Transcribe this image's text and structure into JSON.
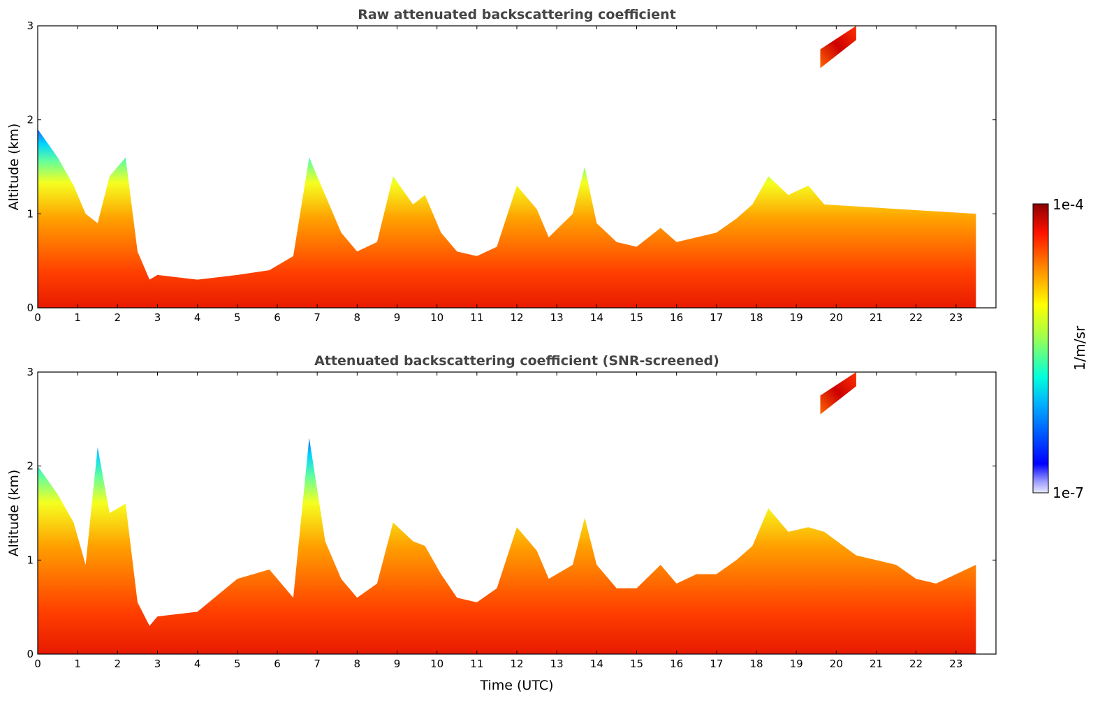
{
  "chart_data": [
    {
      "type": "heatmap",
      "title": "Raw attenuated backscattering coefficient",
      "xlabel": "",
      "ylabel": "Altitude (km)",
      "xlim": [
        0,
        24
      ],
      "ylim": [
        0,
        3
      ],
      "xticks": [
        "0",
        "1",
        "2",
        "3",
        "4",
        "5",
        "6",
        "7",
        "8",
        "9",
        "10",
        "11",
        "12",
        "13",
        "14",
        "15",
        "16",
        "17",
        "18",
        "19",
        "20",
        "21",
        "22",
        "23"
      ],
      "yticks": [
        "0",
        "1",
        "2",
        "3"
      ],
      "data_end_hour": 23.5,
      "screened": false,
      "boundary_layer_top_km": [
        [
          0.0,
          1.9
        ],
        [
          0.5,
          1.6
        ],
        [
          0.9,
          1.3
        ],
        [
          1.2,
          1.0
        ],
        [
          1.5,
          0.9
        ],
        [
          1.8,
          1.4
        ],
        [
          2.2,
          1.6
        ],
        [
          2.5,
          0.6
        ],
        [
          2.8,
          0.3
        ],
        [
          3.0,
          0.35
        ],
        [
          4.0,
          0.3
        ],
        [
          5.0,
          0.35
        ],
        [
          5.8,
          0.4
        ],
        [
          6.4,
          0.55
        ],
        [
          6.8,
          1.6
        ],
        [
          7.2,
          1.2
        ],
        [
          7.6,
          0.8
        ],
        [
          8.0,
          0.6
        ],
        [
          8.5,
          0.7
        ],
        [
          8.9,
          1.4
        ],
        [
          9.4,
          1.1
        ],
        [
          9.7,
          1.2
        ],
        [
          10.1,
          0.8
        ],
        [
          10.5,
          0.6
        ],
        [
          11.0,
          0.55
        ],
        [
          11.5,
          0.65
        ],
        [
          12.0,
          1.3
        ],
        [
          12.5,
          1.05
        ],
        [
          12.8,
          0.75
        ],
        [
          13.4,
          1.0
        ],
        [
          13.7,
          1.5
        ],
        [
          14.0,
          0.9
        ],
        [
          14.5,
          0.7
        ],
        [
          15.0,
          0.65
        ],
        [
          15.6,
          0.85
        ],
        [
          16.0,
          0.7
        ],
        [
          16.5,
          0.75
        ],
        [
          17.0,
          0.8
        ],
        [
          17.5,
          0.95
        ],
        [
          17.9,
          1.1
        ],
        [
          18.3,
          1.4
        ],
        [
          18.8,
          1.2
        ],
        [
          19.3,
          1.3
        ],
        [
          19.7,
          1.1
        ],
        [
          23.5,
          1.0
        ]
      ],
      "elevated_layer": {
        "start_hour": 19.6,
        "end_hour": 20.5,
        "base_km": [
          2.55,
          2.85
        ],
        "top_km": [
          2.75,
          3.0
        ]
      },
      "colorbar": {
        "label": "1/m/sr",
        "min_label": "1e-7",
        "max_label": "1e-4",
        "colormap": "jet"
      }
    },
    {
      "type": "heatmap",
      "title": "Attenuated backscattering coefficient (SNR-screened)",
      "xlabel": "Time (UTC)",
      "ylabel": "Altitude (km)",
      "xlim": [
        0,
        24
      ],
      "ylim": [
        0,
        3
      ],
      "xticks": [
        "0",
        "1",
        "2",
        "3",
        "4",
        "5",
        "6",
        "7",
        "8",
        "9",
        "10",
        "11",
        "12",
        "13",
        "14",
        "15",
        "16",
        "17",
        "18",
        "19",
        "20",
        "21",
        "22",
        "23"
      ],
      "yticks": [
        "0",
        "1",
        "2",
        "3"
      ],
      "data_end_hour": 23.5,
      "screened": true,
      "boundary_layer_top_km": [
        [
          0.0,
          2.0
        ],
        [
          0.5,
          1.7
        ],
        [
          0.9,
          1.4
        ],
        [
          1.2,
          0.95
        ],
        [
          1.5,
          2.2
        ],
        [
          1.8,
          1.5
        ],
        [
          2.2,
          1.6
        ],
        [
          2.5,
          0.55
        ],
        [
          2.8,
          0.3
        ],
        [
          3.0,
          0.4
        ],
        [
          4.0,
          0.45
        ],
        [
          5.0,
          0.8
        ],
        [
          5.8,
          0.9
        ],
        [
          6.4,
          0.6
        ],
        [
          6.8,
          2.3
        ],
        [
          7.2,
          1.2
        ],
        [
          7.6,
          0.8
        ],
        [
          8.0,
          0.6
        ],
        [
          8.5,
          0.75
        ],
        [
          8.9,
          1.4
        ],
        [
          9.4,
          1.2
        ],
        [
          9.7,
          1.15
        ],
        [
          10.1,
          0.85
        ],
        [
          10.5,
          0.6
        ],
        [
          11.0,
          0.55
        ],
        [
          11.5,
          0.7
        ],
        [
          12.0,
          1.35
        ],
        [
          12.5,
          1.1
        ],
        [
          12.8,
          0.8
        ],
        [
          13.4,
          0.95
        ],
        [
          13.7,
          1.45
        ],
        [
          14.0,
          0.95
        ],
        [
          14.5,
          0.7
        ],
        [
          15.0,
          0.7
        ],
        [
          15.6,
          0.95
        ],
        [
          16.0,
          0.75
        ],
        [
          16.5,
          0.85
        ],
        [
          17.0,
          0.85
        ],
        [
          17.5,
          1.0
        ],
        [
          17.9,
          1.15
        ],
        [
          18.3,
          1.55
        ],
        [
          18.8,
          1.3
        ],
        [
          19.3,
          1.35
        ],
        [
          19.7,
          1.3
        ],
        [
          20.5,
          1.05
        ],
        [
          21.5,
          0.95
        ],
        [
          22.0,
          0.8
        ],
        [
          22.5,
          0.75
        ],
        [
          23.5,
          0.95
        ]
      ],
      "elevated_layer": {
        "start_hour": 19.6,
        "end_hour": 20.5,
        "base_km": [
          2.55,
          2.85
        ],
        "top_km": [
          2.75,
          3.0
        ]
      },
      "colorbar": {
        "label": "1/m/sr",
        "min_label": "1e-7",
        "max_label": "1e-4",
        "colormap": "jet"
      }
    }
  ],
  "colorbar": {
    "label": "1/m/sr",
    "min_label": "1e-7",
    "max_label": "1e-4"
  },
  "colors": {
    "background": "#ffffff",
    "title": "#444444",
    "axis": "#000000"
  }
}
